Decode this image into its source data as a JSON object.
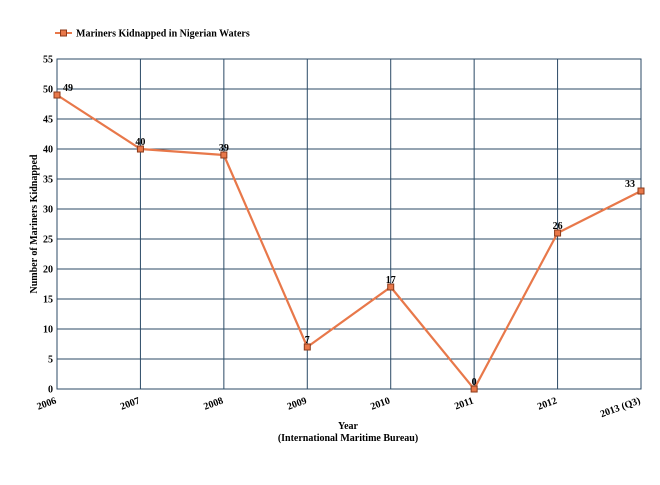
{
  "chart_data": {
    "type": "line",
    "title": "",
    "categories": [
      "2006",
      "2007",
      "2008",
      "2009",
      "2010",
      "2011",
      "2012",
      "2013 (Q3)"
    ],
    "series": [
      {
        "name": "Mariners Kidnapped in Nigerian Waters",
        "values": [
          49,
          40,
          39,
          7,
          17,
          0,
          26,
          33
        ],
        "color": "#E8784A",
        "marker_fill": "#E8784A",
        "marker_stroke": "#8B3A1A"
      }
    ],
    "xlabel": "Year",
    "xlabel_sub": "(International Maritime Bureau)",
    "ylabel": "Number of Mariners Kidnapped",
    "ylim": [
      0,
      55
    ],
    "yticks": [
      0,
      5,
      10,
      15,
      20,
      25,
      30,
      35,
      40,
      45,
      50,
      55
    ],
    "grid": true,
    "grid_color": "#2B4A66",
    "legend_position": "top-left",
    "data_labels": true
  }
}
